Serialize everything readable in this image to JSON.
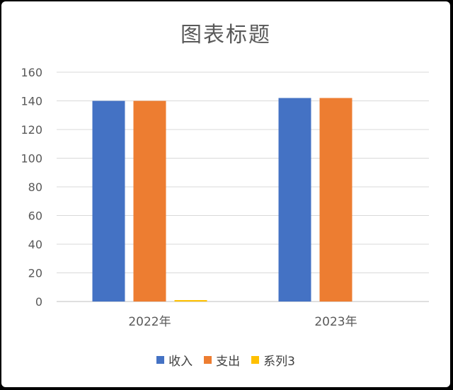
{
  "chart_data": {
    "type": "bar",
    "title": "图表标题",
    "categories": [
      "2022年",
      "2023年"
    ],
    "series": [
      {
        "name": "收入",
        "values": [
          140,
          142
        ],
        "color": "#4472C4"
      },
      {
        "name": "支出",
        "values": [
          140,
          142
        ],
        "color": "#ED7D31"
      },
      {
        "name": "系列3",
        "values": [
          1,
          0
        ],
        "color": "#FFC000"
      }
    ],
    "ylim": [
      0,
      160
    ],
    "yticks": [
      "0",
      "20",
      "40",
      "60",
      "80",
      "100",
      "120",
      "140",
      "160"
    ],
    "grid": true,
    "legend_position": "bottom"
  }
}
